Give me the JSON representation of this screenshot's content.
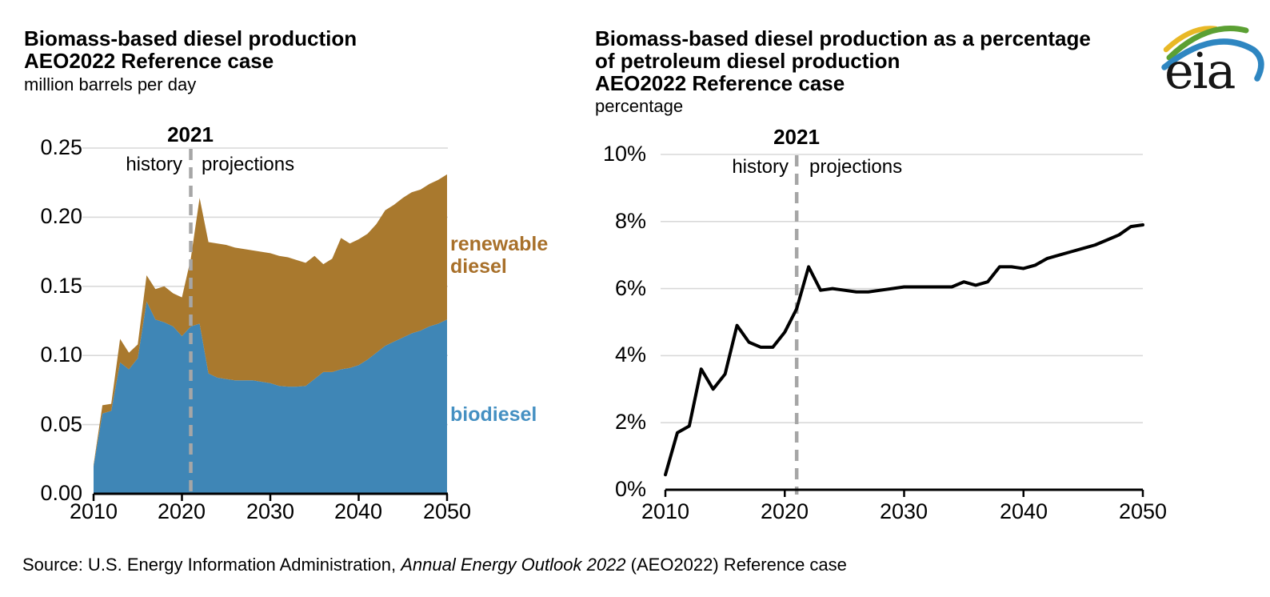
{
  "page": {
    "background": "#ffffff"
  },
  "logo": {
    "text": "eia",
    "swoosh_colors": {
      "yellow": "#e9b826",
      "green": "#5ba033",
      "blue": "#2e86c1"
    }
  },
  "source": {
    "prefix": "Source: U.S. Energy Information Administration, ",
    "italic": "Annual Energy Outlook 2022",
    "suffix": " (AEO2022) Reference case"
  },
  "colors": {
    "biodiesel_area": "#3f86b6",
    "biodiesel_label": "#4590c2",
    "renewable_area": "#a9792e",
    "renewable_label": "#a8702a",
    "dashed_line": "#a6a6a6",
    "gridline": "#d9d9d9",
    "axis": "#000000",
    "line_series": "#000000"
  },
  "charts": {
    "left": {
      "title_line1": "Biomass-based diesel production",
      "title_line2": "AEO2022 Reference case",
      "unit_label": "million barrels per day",
      "annotation_year": "2021",
      "history_label": "history",
      "projections_label": "projections",
      "series_label_renewable_line1": "renewable",
      "series_label_renewable_line2": "diesel",
      "series_label_biodiesel": "biodiesel",
      "y_tick_labels": [
        "0.25",
        "0.20",
        "0.15",
        "0.10",
        "0.05",
        "0.00"
      ],
      "x_tick_labels": [
        "2010",
        "2020",
        "2030",
        "2040",
        "2050"
      ]
    },
    "right": {
      "title_line1": "Biomass-based diesel production as a percentage",
      "title_line2": "of petroleum diesel production",
      "title_line3": "AEO2022 Reference case",
      "unit_label": "percentage",
      "annotation_year": "2021",
      "history_label": "history",
      "projections_label": "projections",
      "y_tick_labels": [
        "10%",
        "8%",
        "6%",
        "4%",
        "2%",
        "0%"
      ],
      "x_tick_labels": [
        "2010",
        "2020",
        "2030",
        "2040",
        "2050"
      ]
    }
  },
  "chart_data": [
    {
      "type": "area",
      "stacked": true,
      "title": "Biomass-based diesel production AEO2022 Reference case",
      "ylabel": "million barrels per day",
      "ylim": [
        0,
        0.25
      ],
      "yticks": [
        0,
        0.05,
        0.1,
        0.15,
        0.2,
        0.25
      ],
      "xticks": [
        2010,
        2020,
        2030,
        2040,
        2050
      ],
      "vline_year": 2021,
      "grid": "horizontal",
      "legend_position": "right-of-plot-inline-labels",
      "x": [
        2010,
        2011,
        2012,
        2013,
        2014,
        2015,
        2016,
        2017,
        2018,
        2019,
        2020,
        2021,
        2022,
        2023,
        2024,
        2025,
        2026,
        2027,
        2028,
        2029,
        2030,
        2031,
        2032,
        2033,
        2034,
        2035,
        2036,
        2037,
        2038,
        2039,
        2040,
        2041,
        2042,
        2043,
        2044,
        2045,
        2046,
        2047,
        2048,
        2049,
        2050
      ],
      "series": [
        {
          "name": "biodiesel",
          "color": "#3f86b6",
          "values": [
            0.02,
            0.058,
            0.06,
            0.095,
            0.09,
            0.098,
            0.139,
            0.126,
            0.124,
            0.121,
            0.114,
            0.121,
            0.123,
            0.087,
            0.084,
            0.083,
            0.082,
            0.082,
            0.082,
            0.081,
            0.08,
            0.078,
            0.0775,
            0.0775,
            0.078,
            0.083,
            0.088,
            0.088,
            0.09,
            0.091,
            0.093,
            0.097,
            0.102,
            0.107,
            0.11,
            0.113,
            0.116,
            0.118,
            0.121,
            0.123,
            0.126
          ]
        },
        {
          "name": "renewable diesel",
          "color": "#a9792e",
          "values": [
            0.001,
            0.006,
            0.005,
            0.017,
            0.012,
            0.01,
            0.019,
            0.022,
            0.026,
            0.024,
            0.028,
            0.049,
            0.091,
            0.095,
            0.097,
            0.097,
            0.096,
            0.095,
            0.094,
            0.094,
            0.094,
            0.094,
            0.0935,
            0.0915,
            0.089,
            0.089,
            0.078,
            0.082,
            0.095,
            0.09,
            0.091,
            0.091,
            0.093,
            0.098,
            0.099,
            0.101,
            0.102,
            0.102,
            0.103,
            0.104,
            0.105
          ]
        }
      ]
    },
    {
      "type": "line",
      "title": "Biomass-based diesel production as a percentage of petroleum diesel production AEO2022 Reference case",
      "ylabel": "percentage",
      "ylim": [
        0,
        10
      ],
      "yticks": [
        0,
        2,
        4,
        6,
        8,
        10
      ],
      "xticks": [
        2010,
        2020,
        2030,
        2040,
        2050
      ],
      "vline_year": 2021,
      "grid": "horizontal",
      "x": [
        2010,
        2011,
        2012,
        2013,
        2014,
        2015,
        2016,
        2017,
        2018,
        2019,
        2020,
        2021,
        2022,
        2023,
        2024,
        2025,
        2026,
        2027,
        2028,
        2029,
        2030,
        2031,
        2032,
        2033,
        2034,
        2035,
        2036,
        2037,
        2038,
        2039,
        2040,
        2041,
        2042,
        2043,
        2044,
        2045,
        2046,
        2047,
        2048,
        2049,
        2050
      ],
      "series": [
        {
          "name": "biomass-based diesel share of petroleum diesel",
          "color": "#000000",
          "values": [
            0.45,
            1.7,
            1.9,
            3.6,
            3.0,
            3.45,
            4.9,
            4.4,
            4.25,
            4.25,
            4.7,
            5.4,
            6.65,
            5.95,
            6.0,
            5.95,
            5.9,
            5.9,
            5.95,
            6.0,
            6.05,
            6.05,
            6.05,
            6.05,
            6.05,
            6.2,
            6.1,
            6.2,
            6.65,
            6.65,
            6.6,
            6.7,
            6.9,
            7.0,
            7.1,
            7.2,
            7.3,
            7.45,
            7.6,
            7.85,
            7.9
          ]
        }
      ]
    }
  ]
}
